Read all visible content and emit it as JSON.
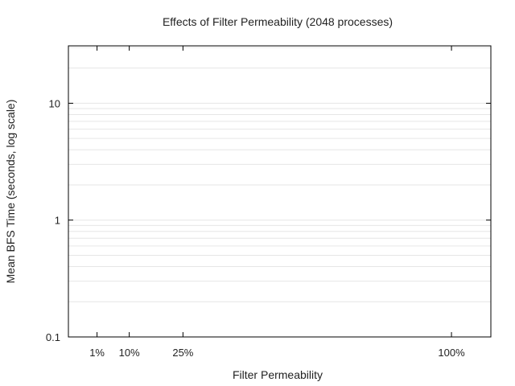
{
  "chart_data": {
    "type": "line",
    "title": "Effects of Filter Permeability (2048 processes)",
    "xlabel": "Filter Permeability",
    "ylabel": "Mean BFS Time (seconds, log scale)",
    "x_ticks": [
      {
        "value": 1,
        "label": "1%"
      },
      {
        "value": 10,
        "label": "10%"
      },
      {
        "value": 25,
        "label": "25%"
      },
      {
        "value": 100,
        "label": "100%"
      }
    ],
    "xlim": [
      -7,
      111
    ],
    "y_scale": "log",
    "ylim": [
      0.1,
      31
    ],
    "y_ticks": [
      {
        "value": 0.1,
        "label": "0.1"
      },
      {
        "value": 1,
        "label": "1"
      },
      {
        "value": 10,
        "label": "10"
      }
    ],
    "grid": true,
    "series": []
  },
  "colors": {
    "axis": "#000000",
    "grid": "#e6e6e6",
    "text": "#222222"
  }
}
